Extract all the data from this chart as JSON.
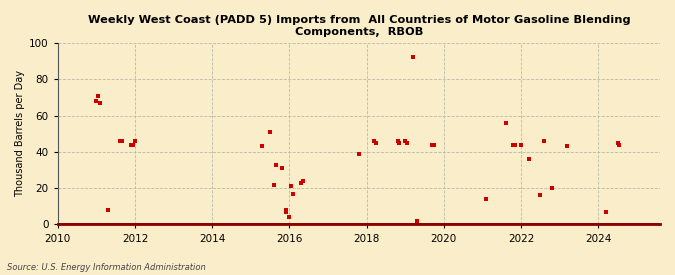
{
  "title_line1": "Weekly West Coast (PADD 5) Imports from  All Countries of Motor Gasoline Blending",
  "title_line2": "Components,  RBOB",
  "ylabel": "Thousand Barrels per Day",
  "source": "Source: U.S. Energy Information Administration",
  "background_color": "#faeeca",
  "plot_bg_color": "#faeeca",
  "marker_color": "#cc0000",
  "line_color": "#8b0000",
  "ylim": [
    0,
    100
  ],
  "yticks": [
    0,
    20,
    40,
    60,
    80,
    100
  ],
  "xlim_start": 2010.0,
  "xlim_end": 2025.6,
  "xticks": [
    2010,
    2012,
    2014,
    2016,
    2018,
    2020,
    2022,
    2024
  ],
  "data_points": [
    [
      2011.0,
      68
    ],
    [
      2011.05,
      71
    ],
    [
      2011.1,
      67
    ],
    [
      2011.3,
      8
    ],
    [
      2011.6,
      46
    ],
    [
      2011.65,
      46
    ],
    [
      2011.9,
      44
    ],
    [
      2011.95,
      44
    ],
    [
      2012.0,
      46
    ],
    [
      2015.3,
      43
    ],
    [
      2015.5,
      51
    ],
    [
      2015.6,
      22
    ],
    [
      2015.65,
      33
    ],
    [
      2015.8,
      31
    ],
    [
      2015.9,
      8
    ],
    [
      2015.92,
      7
    ],
    [
      2016.0,
      4
    ],
    [
      2016.05,
      21
    ],
    [
      2016.1,
      17
    ],
    [
      2016.3,
      23
    ],
    [
      2016.35,
      24
    ],
    [
      2017.8,
      39
    ],
    [
      2018.2,
      46
    ],
    [
      2018.25,
      45
    ],
    [
      2018.8,
      46
    ],
    [
      2018.85,
      45
    ],
    [
      2019.0,
      46
    ],
    [
      2019.05,
      45
    ],
    [
      2019.2,
      92
    ],
    [
      2019.3,
      2
    ],
    [
      2019.7,
      44
    ],
    [
      2019.75,
      44
    ],
    [
      2021.1,
      14
    ],
    [
      2021.6,
      56
    ],
    [
      2021.8,
      44
    ],
    [
      2021.85,
      44
    ],
    [
      2022.0,
      44
    ],
    [
      2022.2,
      36
    ],
    [
      2022.5,
      16
    ],
    [
      2022.6,
      46
    ],
    [
      2022.8,
      20
    ],
    [
      2023.2,
      43
    ],
    [
      2024.2,
      7
    ],
    [
      2024.5,
      45
    ],
    [
      2024.55,
      44
    ]
  ]
}
